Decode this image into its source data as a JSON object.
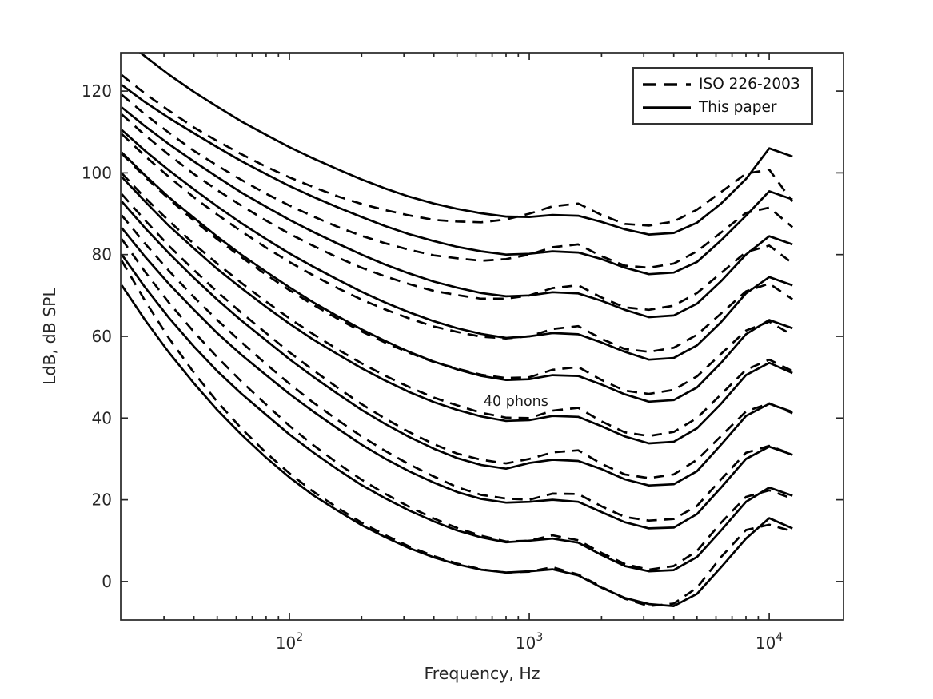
{
  "figure": {
    "xlabel": "Frequency, Hz",
    "ylabel": "LdB, dB SPL",
    "annotation_text": "40 phons"
  },
  "legend": {
    "entries": [
      {
        "label": "ISO 226-2003",
        "style": "dashed"
      },
      {
        "label": "This paper",
        "style": "solid"
      }
    ],
    "position": "top-right"
  },
  "chart_data": {
    "type": "line",
    "title": "",
    "xlabel": "Frequency, Hz",
    "ylabel": "LdB, dB SPL",
    "x_scale": "log",
    "xlim": [
      19.8,
      20400
    ],
    "ylim": [
      -9.4,
      129.4
    ],
    "grid": false,
    "box": true,
    "tick_direction": "in",
    "line_color": "#000000",
    "axes_color": "#262626",
    "x_major_ticks": [
      {
        "value": 100,
        "base": "10",
        "exp": "2"
      },
      {
        "value": 1000,
        "base": "10",
        "exp": "3"
      },
      {
        "value": 10000,
        "base": "10",
        "exp": "4"
      }
    ],
    "x_minor_ticks": [
      30,
      40,
      50,
      60,
      70,
      80,
      90,
      200,
      300,
      400,
      500,
      600,
      700,
      800,
      900,
      2000,
      3000,
      4000,
      5000,
      6000,
      7000,
      8000,
      9000
    ],
    "y_ticks": [
      0,
      20,
      40,
      60,
      80,
      100,
      120
    ],
    "annotation": {
      "text": "40 phons",
      "freq_hz": 880,
      "db": 44
    },
    "frequencies": [
      20,
      25,
      31.5,
      40,
      50,
      63,
      80,
      100,
      125,
      160,
      200,
      250,
      315,
      400,
      500,
      630,
      800,
      1000,
      1250,
      1600,
      2000,
      2500,
      3150,
      4000,
      5000,
      6300,
      8000,
      10000,
      12500
    ],
    "series": [
      {
        "name": "ISO 226-2003",
        "phon": 0,
        "style": "dashed",
        "values": [
          78.5,
          68.7,
          59.5,
          51.1,
          44.0,
          37.5,
          31.5,
          26.5,
          22.1,
          17.9,
          14.4,
          11.4,
          8.6,
          6.2,
          4.4,
          3.0,
          2.2,
          2.4,
          3.5,
          1.7,
          -1.3,
          -4.2,
          -6.0,
          -5.4,
          -1.5,
          6.0,
          12.6,
          13.9,
          12.3
        ]
      },
      {
        "name": "This paper",
        "phon": 0,
        "style": "solid",
        "values": [
          72.5,
          64.0,
          56.0,
          48.5,
          42.0,
          36.0,
          30.3,
          25.5,
          21.2,
          17.2,
          13.8,
          10.9,
          8.2,
          5.9,
          4.2,
          2.9,
          2.2,
          2.5,
          3.0,
          1.5,
          -1.5,
          -4.0,
          -5.5,
          -6.0,
          -3.0,
          3.5,
          10.5,
          15.5,
          13.0
        ]
      },
      {
        "name": "ISO 226-2003",
        "phon": 10,
        "style": "dashed",
        "values": [
          83.8,
          75.8,
          68.2,
          61.1,
          54.9,
          49.0,
          43.3,
          38.1,
          33.5,
          28.8,
          24.9,
          21.5,
          18.3,
          15.4,
          13.1,
          11.2,
          9.8,
          10.0,
          11.3,
          10.1,
          7.0,
          4.3,
          2.9,
          3.8,
          7.5,
          14.4,
          20.7,
          22.3,
          20.3
        ]
      },
      {
        "name": "This paper",
        "phon": 10,
        "style": "solid",
        "values": [
          80.0,
          72.0,
          64.5,
          57.5,
          51.5,
          46.0,
          40.8,
          36.0,
          31.7,
          27.3,
          23.6,
          20.4,
          17.4,
          14.7,
          12.5,
          10.8,
          9.6,
          10.0,
          10.5,
          9.5,
          6.5,
          3.8,
          2.5,
          2.8,
          6.0,
          12.5,
          19.5,
          23.0,
          21.0
        ]
      },
      {
        "name": "ISO 226-2003",
        "phon": 20,
        "style": "dashed",
        "values": [
          89.6,
          82.7,
          76.0,
          69.6,
          64.0,
          58.6,
          53.2,
          48.4,
          43.9,
          39.4,
          35.5,
          32.0,
          28.7,
          25.7,
          23.1,
          21.2,
          20.3,
          20.0,
          21.5,
          21.4,
          18.4,
          15.8,
          14.9,
          15.3,
          18.5,
          25.0,
          31.5,
          33.2,
          31.1
        ]
      },
      {
        "name": "This paper",
        "phon": 20,
        "style": "solid",
        "values": [
          86.5,
          79.5,
          72.8,
          66.5,
          60.8,
          55.5,
          50.5,
          45.9,
          41.7,
          37.3,
          33.5,
          30.1,
          27.0,
          24.2,
          21.9,
          20.2,
          19.3,
          19.5,
          20.0,
          19.5,
          17.0,
          14.5,
          13.0,
          13.2,
          16.5,
          23.0,
          30.0,
          33.0,
          31.0
        ]
      },
      {
        "name": "ISO 226-2003",
        "phon": 30,
        "style": "dashed",
        "values": [
          94.8,
          88.4,
          82.1,
          76.2,
          70.9,
          65.8,
          60.8,
          56.1,
          51.8,
          47.3,
          43.4,
          39.9,
          36.6,
          33.6,
          31.3,
          29.8,
          28.9,
          30.0,
          31.6,
          32.1,
          28.8,
          26.2,
          25.3,
          26.2,
          29.8,
          35.6,
          41.6,
          43.6,
          41.2
        ]
      },
      {
        "name": "This paper",
        "phon": 30,
        "style": "solid",
        "values": [
          93.0,
          86.5,
          80.3,
          74.3,
          69.0,
          63.9,
          59.0,
          54.4,
          50.2,
          45.8,
          42.0,
          38.6,
          35.4,
          32.5,
          30.2,
          28.5,
          27.6,
          29.0,
          29.8,
          29.5,
          27.5,
          25.0,
          23.5,
          23.8,
          27.0,
          33.5,
          40.5,
          43.5,
          41.5
        ]
      },
      {
        "name": "ISO 226-2003",
        "phon": 40,
        "style": "dashed",
        "values": [
          99.9,
          93.9,
          88.2,
          82.6,
          77.8,
          73.1,
          68.5,
          64.4,
          60.6,
          56.7,
          53.4,
          50.4,
          47.6,
          45.0,
          43.1,
          41.3,
          40.1,
          40.0,
          41.8,
          42.5,
          39.2,
          36.5,
          35.6,
          36.6,
          40.0,
          45.8,
          51.8,
          54.3,
          51.5
        ]
      },
      {
        "name": "This paper",
        "phon": 40,
        "style": "solid",
        "values": [
          99.0,
          93.0,
          87.0,
          81.5,
          76.5,
          71.8,
          67.2,
          63.1,
          59.3,
          55.5,
          52.2,
          49.2,
          46.4,
          43.9,
          42.0,
          40.4,
          39.3,
          39.5,
          40.5,
          40.3,
          38.0,
          35.5,
          33.8,
          34.2,
          37.5,
          43.5,
          50.5,
          53.5,
          51.0
        ]
      },
      {
        "name": "ISO 226-2003",
        "phon": 50,
        "style": "dashed",
        "values": [
          104.7,
          99.0,
          93.6,
          88.3,
          83.8,
          79.4,
          75.1,
          71.3,
          67.8,
          64.2,
          61.2,
          58.5,
          56.0,
          53.7,
          52.1,
          50.6,
          49.8,
          50.0,
          51.8,
          52.5,
          49.3,
          46.7,
          45.9,
          46.9,
          50.2,
          55.7,
          61.4,
          63.6,
          60.3
        ]
      },
      {
        "name": "This paper",
        "phon": 50,
        "style": "solid",
        "values": [
          105.0,
          99.4,
          94.0,
          89.0,
          84.4,
          80.0,
          75.8,
          72.0,
          68.4,
          64.8,
          61.7,
          58.9,
          56.2,
          53.8,
          51.9,
          50.3,
          49.3,
          49.5,
          50.5,
          50.3,
          48.2,
          45.8,
          44.0,
          44.4,
          47.5,
          53.5,
          60.5,
          64.0,
          62.0
        ]
      },
      {
        "name": "ISO 226-2003",
        "phon": 60,
        "style": "dashed",
        "values": [
          109.5,
          104.1,
          99.0,
          94.0,
          89.8,
          85.7,
          81.7,
          78.2,
          75.0,
          71.7,
          69.0,
          66.6,
          64.4,
          62.4,
          61.1,
          59.9,
          59.5,
          60.0,
          61.8,
          62.5,
          59.4,
          56.9,
          56.2,
          57.2,
          60.4,
          65.6,
          71.0,
          72.9,
          69.1
        ]
      },
      {
        "name": "This paper",
        "phon": 60,
        "style": "solid",
        "values": [
          110.5,
          105.4,
          100.6,
          96.0,
          91.8,
          87.7,
          83.8,
          80.3,
          77.1,
          73.8,
          70.9,
          68.3,
          65.9,
          63.7,
          62.0,
          60.6,
          59.6,
          60.0,
          60.8,
          60.5,
          58.5,
          56.2,
          54.3,
          54.7,
          57.8,
          63.5,
          70.5,
          74.5,
          72.5
        ]
      },
      {
        "name": "ISO 226-2003",
        "phon": 70,
        "style": "dashed",
        "values": [
          114.3,
          109.2,
          104.4,
          99.7,
          95.8,
          92.0,
          88.3,
          85.1,
          82.2,
          79.2,
          76.8,
          74.7,
          72.8,
          71.1,
          70.1,
          69.2,
          69.2,
          70.0,
          71.8,
          72.5,
          69.5,
          67.1,
          66.5,
          67.5,
          70.6,
          75.5,
          80.6,
          82.2,
          77.9
        ]
      },
      {
        "name": "This paper",
        "phon": 70,
        "style": "solid",
        "values": [
          116.0,
          111.4,
          107.0,
          102.8,
          99.0,
          95.2,
          91.7,
          88.5,
          85.6,
          82.6,
          80.0,
          77.6,
          75.4,
          73.4,
          71.9,
          70.6,
          69.8,
          70.0,
          70.8,
          70.5,
          68.7,
          66.5,
          64.7,
          65.1,
          68.0,
          73.5,
          80.0,
          84.5,
          82.5
        ]
      },
      {
        "name": "ISO 226-2003",
        "phon": 80,
        "style": "dashed",
        "values": [
          119.1,
          114.3,
          109.8,
          105.4,
          101.8,
          98.3,
          94.9,
          92.0,
          89.4,
          86.7,
          84.6,
          82.8,
          81.2,
          79.8,
          79.1,
          78.5,
          78.9,
          80.0,
          81.8,
          82.5,
          79.6,
          77.3,
          76.8,
          77.8,
          80.8,
          85.4,
          90.2,
          91.5,
          86.7
        ]
      },
      {
        "name": "This paper",
        "phon": 80,
        "style": "solid",
        "values": [
          121.5,
          117.3,
          113.4,
          109.7,
          106.3,
          102.9,
          99.7,
          96.8,
          94.2,
          91.5,
          89.2,
          87.0,
          85.0,
          83.3,
          81.9,
          80.8,
          80.0,
          80.2,
          80.8,
          80.5,
          78.9,
          76.8,
          75.2,
          75.6,
          78.2,
          83.5,
          89.5,
          95.5,
          93.5
        ]
      },
      {
        "name": "ISO 226-2003",
        "phon": 90,
        "style": "dashed",
        "values": [
          123.9,
          119.4,
          115.2,
          111.1,
          107.8,
          104.6,
          101.5,
          98.9,
          96.6,
          94.2,
          92.4,
          90.9,
          89.6,
          88.5,
          88.1,
          87.9,
          88.6,
          90.0,
          91.8,
          92.5,
          89.7,
          87.5,
          87.1,
          88.1,
          91.0,
          95.3,
          99.8,
          100.8,
          93.0
        ]
      },
      {
        "name": "This paper",
        "phon": 90,
        "style": "solid",
        "values": [
          133.0,
          128.5,
          124.0,
          119.8,
          116.2,
          112.6,
          109.3,
          106.3,
          103.6,
          100.8,
          98.4,
          96.2,
          94.2,
          92.5,
          91.2,
          90.1,
          89.3,
          89.2,
          89.7,
          89.5,
          88.0,
          86.2,
          84.9,
          85.3,
          87.8,
          92.5,
          98.5,
          106.0,
          104.0
        ]
      }
    ],
    "legend_entries": [
      "ISO 226-2003",
      "This paper"
    ]
  }
}
